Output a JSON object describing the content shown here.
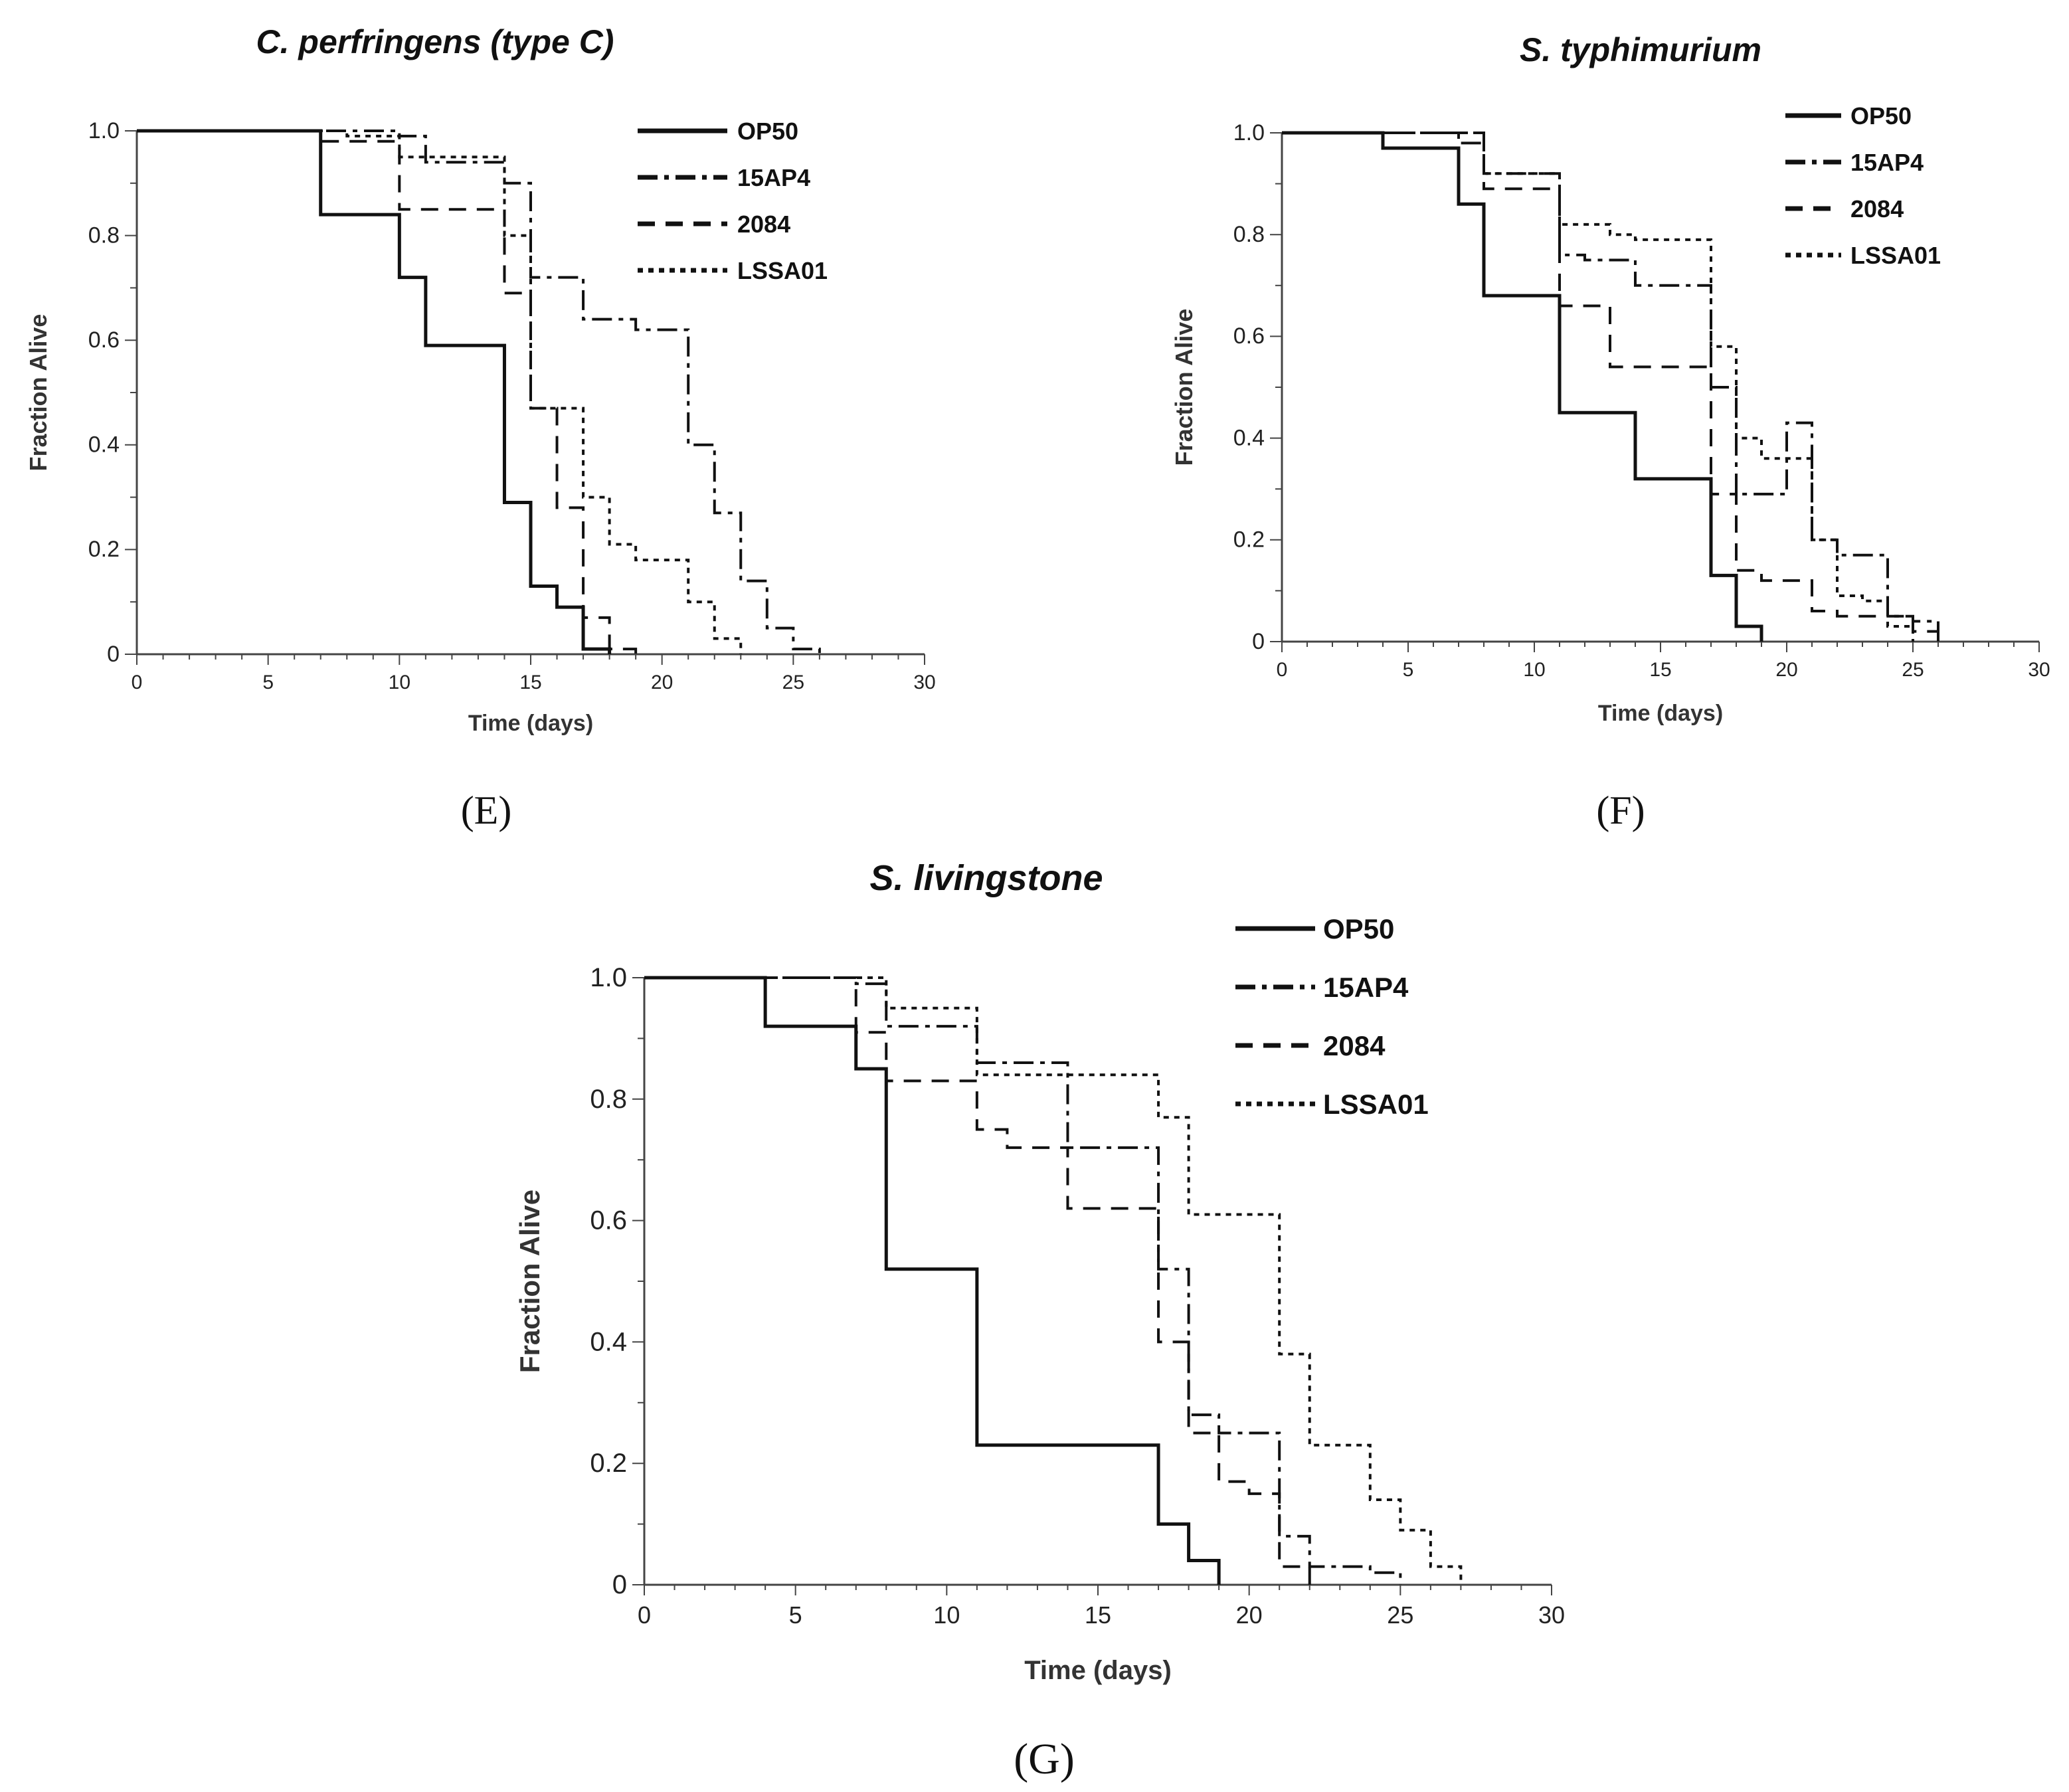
{
  "chart_data": [
    {
      "id": "E",
      "type": "line",
      "step": true,
      "title": "C. perfringens (type C)",
      "panel_label": "(E)",
      "xlabel": "Time (days)",
      "ylabel": "Fraction Alive",
      "xlim": [
        0,
        30
      ],
      "ylim": [
        0,
        1.0
      ],
      "xticks": [
        "0",
        "5",
        "10",
        "15",
        "20",
        "25",
        "30"
      ],
      "yticks": [
        "0",
        "0.2",
        "0.4",
        "0.6",
        "0.8",
        "1.0"
      ],
      "legend": [
        "OP50",
        "15AP4",
        "2084",
        "LSSA01"
      ],
      "legend_position": "top-right",
      "series": [
        {
          "name": "OP50",
          "style": "solid",
          "x": [
            0,
            7,
            10,
            11,
            14,
            15,
            16,
            17,
            18
          ],
          "y": [
            1.0,
            0.84,
            0.72,
            0.59,
            0.29,
            0.13,
            0.09,
            0.01,
            0.0
          ]
        },
        {
          "name": "15AP4",
          "style": "dashdot",
          "x": [
            0,
            10,
            11,
            14,
            15,
            17,
            19,
            21,
            22,
            23,
            24,
            25,
            26
          ],
          "y": [
            1.0,
            0.99,
            0.94,
            0.9,
            0.72,
            0.64,
            0.62,
            0.4,
            0.27,
            0.14,
            0.05,
            0.01,
            0.0
          ]
        },
        {
          "name": "2084",
          "style": "dashed",
          "x": [
            0,
            7,
            10,
            14,
            15,
            16,
            17,
            18,
            19
          ],
          "y": [
            1.0,
            0.98,
            0.85,
            0.69,
            0.47,
            0.28,
            0.07,
            0.01,
            0.0
          ]
        },
        {
          "name": "LSSA01",
          "style": "dotted",
          "x": [
            0,
            8,
            10,
            14,
            15,
            17,
            18,
            19,
            21,
            22,
            23
          ],
          "y": [
            1.0,
            0.99,
            0.95,
            0.8,
            0.47,
            0.3,
            0.21,
            0.18,
            0.1,
            0.03,
            0.0
          ]
        }
      ]
    },
    {
      "id": "F",
      "type": "line",
      "step": true,
      "title": "S. typhimurium",
      "panel_label": "(F)",
      "xlabel": "Time (days)",
      "ylabel": "Fraction Alive",
      "xlim": [
        0,
        30
      ],
      "ylim": [
        0,
        1.0
      ],
      "xticks": [
        "0",
        "5",
        "10",
        "15",
        "20",
        "25",
        "30"
      ],
      "yticks": [
        "0",
        "0.2",
        "0.4",
        "0.6",
        "0.8",
        "1.0"
      ],
      "legend": [
        "OP50",
        "15AP4",
        "2084",
        "LSSA01"
      ],
      "legend_position": "top-right",
      "series": [
        {
          "name": "OP50",
          "style": "solid",
          "x": [
            0,
            4,
            7,
            8,
            11,
            14,
            17,
            18,
            19
          ],
          "y": [
            1.0,
            0.97,
            0.86,
            0.68,
            0.45,
            0.32,
            0.13,
            0.03,
            0.0
          ]
        },
        {
          "name": "15AP4",
          "style": "dashdot",
          "x": [
            0,
            7,
            8,
            11,
            12,
            14,
            17,
            18,
            20,
            21,
            22,
            24,
            25,
            26
          ],
          "y": [
            1.0,
            0.98,
            0.92,
            0.76,
            0.75,
            0.7,
            0.5,
            0.29,
            0.43,
            0.2,
            0.17,
            0.05,
            0.04,
            0.0
          ]
        },
        {
          "name": "2084",
          "style": "dashed",
          "x": [
            0,
            8,
            11,
            13,
            17,
            18,
            19,
            21,
            22,
            25,
            26
          ],
          "y": [
            1.0,
            0.89,
            0.66,
            0.54,
            0.29,
            0.14,
            0.12,
            0.06,
            0.05,
            0.02,
            0.0
          ]
        },
        {
          "name": "LSSA01",
          "style": "dotted",
          "x": [
            0,
            8,
            11,
            13,
            14,
            17,
            18,
            19,
            21,
            22,
            23,
            24,
            25
          ],
          "y": [
            1.0,
            0.92,
            0.82,
            0.8,
            0.79,
            0.58,
            0.4,
            0.36,
            0.2,
            0.09,
            0.08,
            0.03,
            0.0
          ]
        }
      ]
    },
    {
      "id": "G",
      "type": "line",
      "step": true,
      "title": "S. livingstone",
      "panel_label": "(G)",
      "xlabel": "Time (days)",
      "ylabel": "Fraction Alive",
      "xlim": [
        0,
        30
      ],
      "ylim": [
        0,
        1.0
      ],
      "xticks": [
        "0",
        "5",
        "10",
        "15",
        "20",
        "25",
        "30"
      ],
      "yticks": [
        "0",
        "0.2",
        "0.4",
        "0.6",
        "0.8",
        "1.0"
      ],
      "legend": [
        "OP50",
        "15AP4",
        "2084",
        "LSSA01"
      ],
      "legend_position": "top-right",
      "series": [
        {
          "name": "OP50",
          "style": "solid",
          "x": [
            0,
            4,
            7,
            8,
            11,
            17,
            18,
            19
          ],
          "y": [
            1.0,
            0.92,
            0.85,
            0.52,
            0.23,
            0.1,
            0.04,
            0.0
          ]
        },
        {
          "name": "15AP4",
          "style": "dashdot",
          "x": [
            0,
            7,
            8,
            11,
            14,
            17,
            18,
            19,
            21,
            22,
            24,
            25
          ],
          "y": [
            1.0,
            0.99,
            0.92,
            0.86,
            0.72,
            0.52,
            0.28,
            0.25,
            0.08,
            0.03,
            0.02,
            0.0
          ]
        },
        {
          "name": "2084",
          "style": "dashed",
          "x": [
            0,
            7,
            8,
            11,
            12,
            14,
            17,
            18,
            19,
            20,
            21,
            22
          ],
          "y": [
            1.0,
            0.91,
            0.83,
            0.75,
            0.72,
            0.62,
            0.4,
            0.25,
            0.17,
            0.15,
            0.03,
            0.0
          ]
        },
        {
          "name": "LSSA01",
          "style": "dotted",
          "x": [
            0,
            8,
            11,
            17,
            18,
            21,
            22,
            24,
            25,
            26,
            27
          ],
          "y": [
            1.0,
            0.95,
            0.84,
            0.77,
            0.61,
            0.38,
            0.23,
            0.14,
            0.09,
            0.03,
            0.0
          ]
        }
      ]
    }
  ]
}
